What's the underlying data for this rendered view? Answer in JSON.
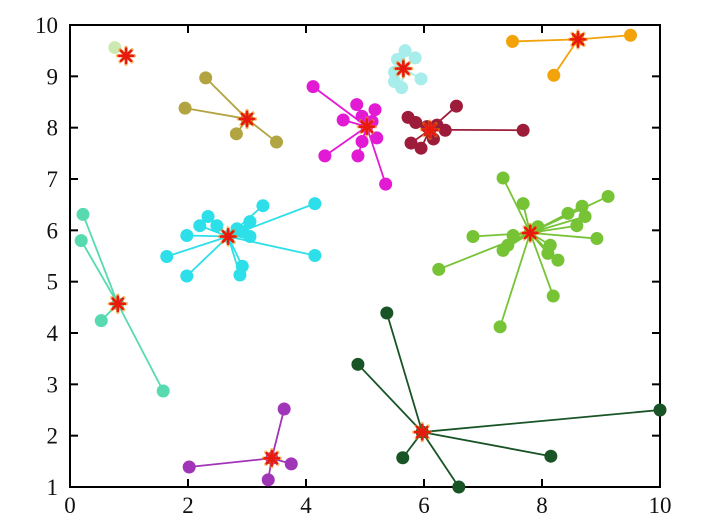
{
  "figure": {
    "kind": "cluster-scatter-figure",
    "background_color": "#ffffff",
    "axis_color": "#000000",
    "tick_label_color": "#111111"
  },
  "chart_data": {
    "type": "scatter",
    "title": "",
    "xlabel": "",
    "ylabel": "",
    "xlim": [
      0,
      10
    ],
    "ylim": [
      1,
      10
    ],
    "x_ticks": [
      0,
      2,
      4,
      6,
      8,
      10
    ],
    "y_ticks": [
      1,
      2,
      3,
      4,
      5,
      6,
      7,
      8,
      9,
      10
    ],
    "grid": false,
    "legend": null,
    "description": "Clustered points joined by lines to red asterisk centroids (k-means style)",
    "centroid_marker": {
      "shape": "8-spoke-asterisk",
      "color": "#e8190e",
      "halo_color": "#f08a00"
    },
    "series": [
      {
        "name": "pale-green",
        "color": "#cde9b2",
        "centroid": [
          0.95,
          9.4
        ],
        "centroid_point": false,
        "points": [
          [
            0.76,
            9.56
          ]
        ]
      },
      {
        "name": "olive",
        "color": "#b2a440",
        "centroid": [
          3.0,
          8.17
        ],
        "centroid_point": true,
        "points": [
          [
            2.3,
            8.97
          ],
          [
            1.95,
            8.38
          ],
          [
            2.82,
            7.88
          ],
          [
            3.5,
            7.72
          ]
        ]
      },
      {
        "name": "magenta",
        "color": "#e31ad4",
        "centroid": [
          5.03,
          8.02
        ],
        "centroid_point": true,
        "points": [
          [
            4.12,
            8.8
          ],
          [
            4.86,
            8.45
          ],
          [
            5.17,
            8.35
          ],
          [
            4.63,
            8.15
          ],
          [
            4.95,
            8.22
          ],
          [
            5.12,
            8.12
          ],
          [
            5.2,
            7.8
          ],
          [
            4.95,
            7.73
          ],
          [
            4.32,
            7.45
          ],
          [
            4.88,
            7.45
          ],
          [
            5.35,
            6.9
          ]
        ]
      },
      {
        "name": "pale-turquoise",
        "color": "#a6edeb",
        "centroid": [
          5.65,
          9.15
        ],
        "centroid_point": true,
        "points": [
          [
            5.68,
            9.5
          ],
          [
            5.85,
            9.36
          ],
          [
            5.55,
            9.33
          ],
          [
            5.5,
            9.08
          ],
          [
            5.5,
            8.9
          ],
          [
            5.62,
            8.78
          ],
          [
            5.95,
            8.95
          ]
        ]
      },
      {
        "name": "orange",
        "color": "#f2a30a",
        "centroid": [
          8.61,
          9.72
        ],
        "centroid_point": true,
        "points": [
          [
            7.5,
            9.68
          ],
          [
            9.5,
            9.8
          ],
          [
            8.2,
            9.02
          ]
        ]
      },
      {
        "name": "maroon",
        "color": "#9c1c39",
        "centroid": [
          6.1,
          7.96
        ],
        "centroid_point": true,
        "points": [
          [
            6.55,
            8.42
          ],
          [
            5.73,
            8.2
          ],
          [
            5.86,
            8.1
          ],
          [
            6.05,
            8.02
          ],
          [
            6.22,
            8.05
          ],
          [
            6.36,
            7.95
          ],
          [
            7.68,
            7.95
          ],
          [
            5.78,
            7.7
          ],
          [
            5.95,
            7.6
          ],
          [
            6.16,
            7.78
          ]
        ]
      },
      {
        "name": "cyan",
        "color": "#2cdfe9",
        "centroid": [
          2.68,
          5.88
        ],
        "centroid_point": true,
        "points": [
          [
            3.27,
            6.48
          ],
          [
            4.15,
            6.52
          ],
          [
            2.34,
            6.27
          ],
          [
            3.05,
            6.17
          ],
          [
            2.2,
            6.09
          ],
          [
            2.49,
            6.09
          ],
          [
            1.98,
            5.9
          ],
          [
            2.83,
            6.03
          ],
          [
            2.93,
            5.97
          ],
          [
            3.05,
            5.88
          ],
          [
            1.64,
            5.49
          ],
          [
            1.98,
            5.11
          ],
          [
            4.15,
            5.51
          ],
          [
            2.92,
            5.3
          ],
          [
            2.88,
            5.13
          ]
        ]
      },
      {
        "name": "aquamarine",
        "color": "#57dab0",
        "centroid": [
          0.81,
          4.57
        ],
        "centroid_point": true,
        "points": [
          [
            0.22,
            6.31
          ],
          [
            0.19,
            5.8
          ],
          [
            0.53,
            4.24
          ],
          [
            1.58,
            2.87
          ]
        ]
      },
      {
        "name": "yellow-green",
        "color": "#77c336",
        "centroid": [
          7.8,
          5.95
        ],
        "centroid_point": true,
        "points": [
          [
            7.34,
            7.02
          ],
          [
            7.68,
            6.52
          ],
          [
            9.12,
            6.66
          ],
          [
            8.44,
            6.33
          ],
          [
            8.68,
            6.47
          ],
          [
            8.73,
            6.27
          ],
          [
            8.59,
            6.09
          ],
          [
            7.93,
            6.07
          ],
          [
            6.83,
            5.88
          ],
          [
            7.51,
            5.9
          ],
          [
            8.93,
            5.84
          ],
          [
            7.42,
            5.71
          ],
          [
            7.34,
            5.61
          ],
          [
            8.14,
            5.71
          ],
          [
            8.1,
            5.55
          ],
          [
            8.27,
            5.42
          ],
          [
            6.25,
            5.24
          ],
          [
            8.19,
            4.72
          ],
          [
            7.29,
            4.12
          ]
        ]
      },
      {
        "name": "dark-green",
        "color": "#185426",
        "centroid": [
          5.97,
          2.07
        ],
        "centroid_point": true,
        "points": [
          [
            5.37,
            4.39
          ],
          [
            4.88,
            3.39
          ],
          [
            10.0,
            2.5
          ],
          [
            8.15,
            1.6
          ],
          [
            5.64,
            1.57
          ],
          [
            6.59,
            1.0
          ]
        ]
      },
      {
        "name": "purple",
        "color": "#a135b8",
        "centroid": [
          3.42,
          1.56
        ],
        "centroid_point": true,
        "points": [
          [
            3.63,
            2.52
          ],
          [
            3.75,
            1.45
          ],
          [
            2.02,
            1.39
          ],
          [
            3.36,
            1.14
          ]
        ]
      }
    ]
  }
}
